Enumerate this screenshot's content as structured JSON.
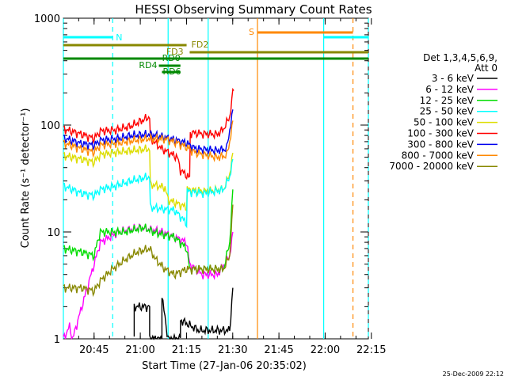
{
  "chart_data": {
    "type": "line",
    "title": "HESSI Observing Summary Count Rates",
    "xlabel": "Start Time (27-Jan-06 20:35:02)",
    "ylabel": "Count Rate (s⁻¹ detector⁻¹)",
    "x_unit": "minutes after 20:35:02",
    "xlim": [
      0,
      99
    ],
    "ylim": [
      1,
      1000
    ],
    "yscale": "log",
    "grid": false,
    "xticks": [
      {
        "label": "20:45",
        "value": 9.97
      },
      {
        "label": "21:00",
        "value": 24.97
      },
      {
        "label": "21:15",
        "value": 39.97
      },
      {
        "label": "21:30",
        "value": 54.97
      },
      {
        "label": "21:45",
        "value": 69.97
      },
      {
        "label": "22:00",
        "value": 84.97
      },
      {
        "label": "22:15",
        "value": 99.97
      }
    ],
    "yticks": [
      {
        "label": "1",
        "value": 1
      },
      {
        "label": "10",
        "value": 10
      },
      {
        "label": "100",
        "value": 100
      },
      {
        "label": "1000",
        "value": 1000
      }
    ],
    "legend": {
      "placement": "right",
      "header_line1": "Det 1,3,4,5,6,9,",
      "header_line2": "Att 0",
      "entries": [
        {
          "label": "3 - 6 keV",
          "color": "#000000"
        },
        {
          "label": "6 - 12 keV",
          "color": "#ff00ff"
        },
        {
          "label": "12 - 25 keV",
          "color": "#00dd00"
        },
        {
          "label": "25 - 50 keV",
          "color": "#00ffff"
        },
        {
          "label": "50 - 100 keV",
          "color": "#dddd00"
        },
        {
          "label": "100 - 300 keV",
          "color": "#ff0000"
        },
        {
          "label": "300 - 800 keV",
          "color": "#0000ee"
        },
        {
          "label": "800 - 7000 keV",
          "color": "#ff8800"
        },
        {
          "label": "7000 - 20000 keV",
          "color": "#888800"
        }
      ]
    },
    "series": [
      {
        "name": "100 - 300 keV",
        "color": "#ff0000",
        "points": [
          [
            0,
            92
          ],
          [
            6,
            82
          ],
          [
            10,
            75
          ],
          [
            12,
            88
          ],
          [
            17,
            90
          ],
          [
            22,
            98
          ],
          [
            28,
            120
          ],
          [
            28.2,
            75
          ],
          [
            32,
            60
          ],
          [
            37,
            50
          ],
          [
            38,
            38
          ],
          [
            41,
            32
          ],
          [
            41.2,
            85
          ],
          [
            45,
            83
          ],
          [
            50,
            82
          ],
          [
            52,
            92
          ],
          [
            54,
            120
          ],
          [
            55,
            200
          ],
          [
            55.3,
            210
          ]
        ]
      },
      {
        "name": "300 - 800 keV",
        "color": "#0000ee",
        "points": [
          [
            0,
            76
          ],
          [
            6,
            67
          ],
          [
            10,
            65
          ],
          [
            12,
            72
          ],
          [
            18,
            75
          ],
          [
            22,
            80
          ],
          [
            28,
            82
          ],
          [
            32,
            78
          ],
          [
            36,
            73
          ],
          [
            40,
            68
          ],
          [
            43,
            60
          ],
          [
            50,
            58
          ],
          [
            53,
            60
          ],
          [
            54,
            90
          ],
          [
            55,
            140
          ]
        ]
      },
      {
        "name": "800 - 7000 keV",
        "color": "#ff8800",
        "points": [
          [
            0,
            68
          ],
          [
            6,
            60
          ],
          [
            10,
            56
          ],
          [
            12,
            65
          ],
          [
            18,
            68
          ],
          [
            23,
            72
          ],
          [
            28,
            75
          ],
          [
            33,
            74
          ],
          [
            37,
            68
          ],
          [
            40,
            62
          ],
          [
            43,
            55
          ],
          [
            50,
            50
          ],
          [
            53,
            52
          ],
          [
            54,
            70
          ],
          [
            55,
            110
          ]
        ]
      },
      {
        "name": "50 - 100 keV",
        "color": "#dddd00",
        "points": [
          [
            0,
            52
          ],
          [
            6,
            48
          ],
          [
            10,
            45
          ],
          [
            12,
            53
          ],
          [
            18,
            56
          ],
          [
            23,
            58
          ],
          [
            28,
            60
          ],
          [
            28.2,
            28
          ],
          [
            33,
            26
          ],
          [
            34,
            20
          ],
          [
            40,
            17
          ],
          [
            40.2,
            25
          ],
          [
            46,
            24
          ],
          [
            52,
            25
          ],
          [
            54,
            35
          ],
          [
            55,
            55
          ]
        ]
      },
      {
        "name": "25 - 50 keV",
        "color": "#00ffff",
        "points": [
          [
            0,
            27
          ],
          [
            6,
            23
          ],
          [
            10,
            22
          ],
          [
            12,
            25
          ],
          [
            17,
            27
          ],
          [
            22,
            30
          ],
          [
            28,
            33
          ],
          [
            28.2,
            17
          ],
          [
            36,
            16
          ],
          [
            38,
            14
          ],
          [
            40,
            12
          ],
          [
            40.2,
            24
          ],
          [
            46,
            23
          ],
          [
            52,
            25
          ],
          [
            54,
            33
          ],
          [
            55,
            48
          ]
        ]
      },
      {
        "name": "6 - 12 keV",
        "color": "#ff00ff",
        "points": [
          [
            0,
            1
          ],
          [
            2,
            1.3
          ],
          [
            3,
            1
          ],
          [
            12,
            8
          ],
          [
            18,
            10
          ],
          [
            25,
            11
          ],
          [
            32,
            10
          ],
          [
            36,
            9
          ],
          [
            40,
            8
          ],
          [
            41,
            5
          ],
          [
            45,
            4
          ],
          [
            50,
            4
          ],
          [
            54,
            6
          ],
          [
            55,
            10
          ]
        ]
      },
      {
        "name": "12 - 25 keV",
        "color": "#00dd00",
        "points": [
          [
            0,
            7
          ],
          [
            6,
            6.5
          ],
          [
            10,
            6
          ],
          [
            11,
            8
          ],
          [
            12,
            10
          ],
          [
            20,
            10
          ],
          [
            26,
            11
          ],
          [
            30,
            9.8
          ],
          [
            36,
            9
          ],
          [
            40,
            7
          ],
          [
            41,
            4.5
          ],
          [
            46,
            4.5
          ],
          [
            52,
            4.5
          ],
          [
            54,
            8
          ],
          [
            55,
            25
          ]
        ]
      },
      {
        "name": "7000 - 20000 keV",
        "color": "#888800",
        "points": [
          [
            0,
            3
          ],
          [
            6,
            3
          ],
          [
            10,
            2.8
          ],
          [
            12,
            3.5
          ],
          [
            16,
            4.5
          ],
          [
            20,
            5.5
          ],
          [
            24,
            6.5
          ],
          [
            28,
            7
          ],
          [
            30,
            5.5
          ],
          [
            33,
            4.5
          ],
          [
            36,
            4
          ],
          [
            40,
            4.5
          ],
          [
            44,
            4.5
          ],
          [
            48,
            4.5
          ],
          [
            52,
            4.5
          ],
          [
            54,
            6
          ],
          [
            55,
            18
          ]
        ]
      },
      {
        "name": "3 - 6 keV",
        "color": "#000000",
        "points": [
          [
            23,
            1
          ],
          [
            23,
            2
          ],
          [
            28,
            2
          ],
          [
            28,
            1
          ],
          [
            32,
            1
          ],
          [
            32,
            2.5
          ],
          [
            34,
            1
          ],
          [
            38,
            1
          ],
          [
            38,
            1.5
          ],
          [
            44,
            1.2
          ],
          [
            54,
            1.2
          ],
          [
            55,
            3
          ]
        ]
      }
    ],
    "attenuator_states": [
      {
        "label": "N",
        "color": "#00ffff",
        "start": 0,
        "end": 16
      },
      {
        "label": "N",
        "color": "#00ffff",
        "start": 84.5,
        "end": 99
      }
    ],
    "flags": [
      {
        "label": "FD2",
        "color": "#888800",
        "start": 0,
        "end": 40
      },
      {
        "label": "FD3",
        "color": "#888800",
        "start": 41,
        "end": 99
      },
      {
        "label": "RD0",
        "color": "#008800",
        "start": 0,
        "end": 99
      },
      {
        "label": "RD4",
        "color": "#008800",
        "start": 31,
        "end": 38
      },
      {
        "label": "RD6",
        "color": "#008800",
        "start": 32,
        "end": 38
      },
      {
        "label": "S",
        "color": "#ff8800",
        "start": 63,
        "end": 94
      }
    ],
    "vertical_markers": [
      {
        "x": 0,
        "color": "#00ffff",
        "style": "solid"
      },
      {
        "x": 16,
        "color": "#00ffff",
        "style": "dashed"
      },
      {
        "x": 34,
        "color": "#00ffff",
        "style": "solid"
      },
      {
        "x": 47,
        "color": "#00ffff",
        "style": "solid"
      },
      {
        "x": 63,
        "color": "#ff8800",
        "style": "solid"
      },
      {
        "x": 84.5,
        "color": "#00ffff",
        "style": "solid"
      },
      {
        "x": 94,
        "color": "#ff8800",
        "style": "dashed"
      },
      {
        "x": 99,
        "color": "#00ffff",
        "style": "dashed"
      }
    ]
  },
  "footer": {
    "timestamp": "25-Dec-2009 22:12"
  }
}
